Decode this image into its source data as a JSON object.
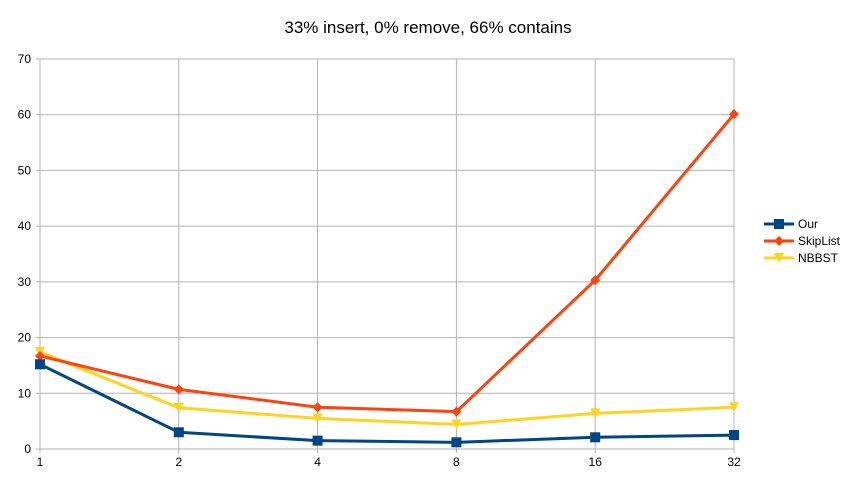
{
  "chart_data": {
    "type": "line",
    "title": "33% insert, 0% remove, 66% contains",
    "xlabel": "",
    "ylabel": "",
    "categories": [
      "1",
      "2",
      "4",
      "8",
      "16",
      "32"
    ],
    "ylim": [
      0,
      70
    ],
    "yticks": [
      0,
      10,
      20,
      30,
      40,
      50,
      60,
      70
    ],
    "grid": true,
    "legend_position": "right",
    "series": [
      {
        "name": "Our",
        "color": "#004586",
        "marker": "square",
        "values": [
          15.2,
          3.0,
          1.5,
          1.2,
          2.1,
          2.5
        ]
      },
      {
        "name": "SkipList",
        "color": "#ff420e",
        "marker": "diamond",
        "values": [
          16.7,
          10.7,
          7.5,
          6.7,
          30.3,
          60.1
        ]
      },
      {
        "name": "NBBST",
        "color": "#ffd320",
        "marker": "triangle-down",
        "values": [
          17.4,
          7.4,
          5.5,
          4.4,
          6.4,
          7.5
        ]
      }
    ]
  }
}
